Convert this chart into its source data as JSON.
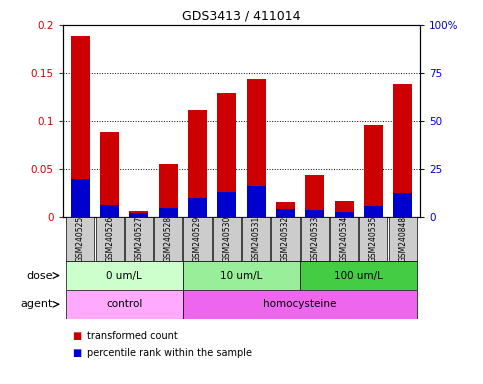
{
  "title": "GDS3413 / 411014",
  "samples": [
    "GSM240525",
    "GSM240526",
    "GSM240527",
    "GSM240528",
    "GSM240529",
    "GSM240530",
    "GSM240531",
    "GSM240532",
    "GSM240533",
    "GSM240534",
    "GSM240535",
    "GSM240848"
  ],
  "transformed_count": [
    0.188,
    0.089,
    0.006,
    0.055,
    0.111,
    0.129,
    0.144,
    0.016,
    0.044,
    0.017,
    0.096,
    0.139
  ],
  "percentile_rank_pct": [
    20,
    6,
    2,
    4.5,
    10,
    13,
    16,
    4,
    3.5,
    2.5,
    5.5,
    12.5
  ],
  "ylim_left": [
    0,
    0.2
  ],
  "ylim_right": [
    0,
    100
  ],
  "yticks_left": [
    0,
    0.05,
    0.1,
    0.15,
    0.2
  ],
  "yticks_right": [
    0,
    25,
    50,
    75,
    100
  ],
  "ytick_labels_left": [
    "0",
    "0.05",
    "0.1",
    "0.15",
    "0.2"
  ],
  "ytick_labels_right": [
    "0",
    "25",
    "50",
    "75",
    "100%"
  ],
  "color_red": "#cc0000",
  "color_blue": "#0000cc",
  "doses": [
    {
      "label": "0 um/L",
      "start": 0,
      "end": 4,
      "color": "#ccffcc"
    },
    {
      "label": "10 um/L",
      "start": 4,
      "end": 8,
      "color": "#99ee99"
    },
    {
      "label": "100 um/L",
      "start": 8,
      "end": 12,
      "color": "#44cc44"
    }
  ],
  "agents": [
    {
      "label": "control",
      "start": 0,
      "end": 4,
      "color": "#ffaaff"
    },
    {
      "label": "homocysteine",
      "start": 4,
      "end": 12,
      "color": "#ee66ee"
    }
  ],
  "legend_items": [
    {
      "label": "transformed count",
      "color": "#cc0000"
    },
    {
      "label": "percentile rank within the sample",
      "color": "#0000cc"
    }
  ],
  "bar_width": 0.65,
  "tick_bg_color": "#cccccc",
  "dose_label": "dose",
  "agent_label": "agent",
  "fig_width": 4.83,
  "fig_height": 3.84,
  "dpi": 100
}
